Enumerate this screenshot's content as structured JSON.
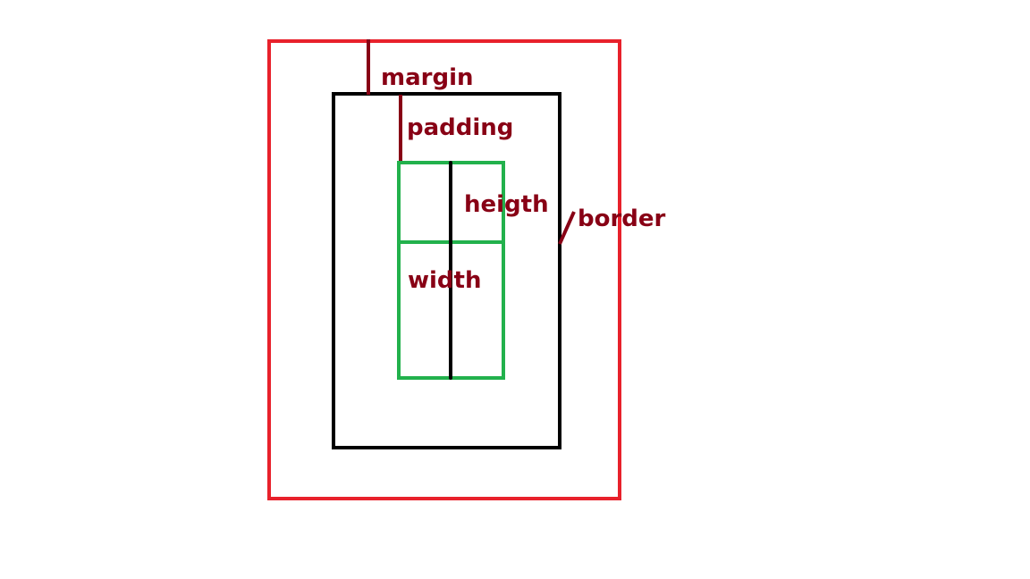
{
  "labels": {
    "margin": "margin",
    "padding": "padding",
    "height": "heigth",
    "border": "border",
    "width": "width"
  },
  "colors": {
    "margin_box": "#e8212b",
    "border_box": "#000000",
    "content_box": "#22b14c",
    "annotation": "#880015",
    "divider": "#000000",
    "background": "#ffffff"
  }
}
